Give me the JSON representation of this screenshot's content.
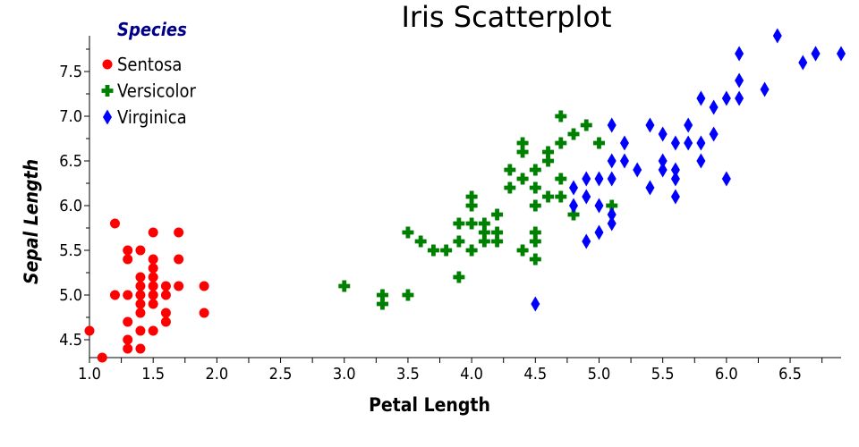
{
  "chart_data": {
    "type": "scatter",
    "title": "Iris Scatterplot",
    "xlabel": "Petal Length",
    "ylabel": "Sepal Length",
    "xlim": [
      1.0,
      6.9
    ],
    "ylim": [
      4.3,
      7.9
    ],
    "x_ticks": [
      "1.0",
      "1.5",
      "2.0",
      "2.5",
      "3.0",
      "3.5",
      "4.0",
      "4.5",
      "5.0",
      "5.5",
      "6.0",
      "6.5"
    ],
    "y_ticks": [
      "4.5",
      "5.0",
      "5.5",
      "6.0",
      "6.5",
      "7.0",
      "7.5"
    ],
    "legend": {
      "title": "Species",
      "position": "top-left"
    },
    "series": [
      {
        "name": "Sentosa",
        "color": "#ff0000",
        "marker": "circle",
        "points": [
          [
            1.0,
            4.6
          ],
          [
            1.1,
            4.3
          ],
          [
            1.2,
            5.8
          ],
          [
            1.2,
            5.0
          ],
          [
            1.3,
            5.5
          ],
          [
            1.3,
            5.4
          ],
          [
            1.3,
            5.0
          ],
          [
            1.3,
            4.7
          ],
          [
            1.3,
            4.5
          ],
          [
            1.3,
            4.4
          ],
          [
            1.4,
            5.5
          ],
          [
            1.4,
            5.2
          ],
          [
            1.4,
            5.1
          ],
          [
            1.4,
            5.0
          ],
          [
            1.4,
            4.9
          ],
          [
            1.4,
            4.8
          ],
          [
            1.4,
            4.6
          ],
          [
            1.4,
            4.4
          ],
          [
            1.5,
            5.7
          ],
          [
            1.5,
            5.4
          ],
          [
            1.5,
            5.3
          ],
          [
            1.5,
            5.2
          ],
          [
            1.5,
            5.1
          ],
          [
            1.5,
            5.0
          ],
          [
            1.5,
            4.9
          ],
          [
            1.5,
            4.6
          ],
          [
            1.6,
            5.1
          ],
          [
            1.6,
            5.0
          ],
          [
            1.6,
            4.8
          ],
          [
            1.6,
            4.7
          ],
          [
            1.7,
            5.7
          ],
          [
            1.7,
            5.4
          ],
          [
            1.7,
            5.1
          ],
          [
            1.9,
            5.1
          ],
          [
            1.9,
            4.8
          ]
        ]
      },
      {
        "name": "Versicolor",
        "color": "#008000",
        "marker": "cross",
        "points": [
          [
            3.0,
            5.1
          ],
          [
            3.3,
            5.0
          ],
          [
            3.3,
            4.9
          ],
          [
            3.5,
            5.7
          ],
          [
            3.5,
            5.0
          ],
          [
            3.6,
            5.6
          ],
          [
            3.7,
            5.5
          ],
          [
            3.8,
            5.5
          ],
          [
            3.9,
            5.8
          ],
          [
            3.9,
            5.6
          ],
          [
            3.9,
            5.2
          ],
          [
            4.0,
            6.1
          ],
          [
            4.0,
            6.0
          ],
          [
            4.0,
            5.8
          ],
          [
            4.0,
            5.5
          ],
          [
            4.1,
            5.8
          ],
          [
            4.1,
            5.7
          ],
          [
            4.1,
            5.6
          ],
          [
            4.2,
            5.9
          ],
          [
            4.2,
            5.7
          ],
          [
            4.2,
            5.6
          ],
          [
            4.3,
            6.4
          ],
          [
            4.3,
            6.2
          ],
          [
            4.4,
            6.7
          ],
          [
            4.4,
            6.6
          ],
          [
            4.4,
            6.3
          ],
          [
            4.4,
            5.5
          ],
          [
            4.5,
            6.4
          ],
          [
            4.5,
            6.2
          ],
          [
            4.5,
            6.0
          ],
          [
            4.5,
            5.7
          ],
          [
            4.5,
            5.6
          ],
          [
            4.5,
            5.4
          ],
          [
            4.6,
            6.6
          ],
          [
            4.6,
            6.5
          ],
          [
            4.6,
            6.1
          ],
          [
            4.7,
            7.0
          ],
          [
            4.7,
            6.7
          ],
          [
            4.7,
            6.3
          ],
          [
            4.7,
            6.1
          ],
          [
            4.8,
            6.8
          ],
          [
            4.8,
            5.9
          ],
          [
            4.9,
            6.9
          ],
          [
            5.0,
            6.7
          ],
          [
            5.1,
            6.0
          ]
        ]
      },
      {
        "name": "Virginica",
        "color": "#0000ff",
        "marker": "diamond",
        "points": [
          [
            4.5,
            4.9
          ],
          [
            4.8,
            6.2
          ],
          [
            4.8,
            6.0
          ],
          [
            4.9,
            6.3
          ],
          [
            4.9,
            6.1
          ],
          [
            4.9,
            5.6
          ],
          [
            5.0,
            6.3
          ],
          [
            5.0,
            6.0
          ],
          [
            5.0,
            5.7
          ],
          [
            5.1,
            6.9
          ],
          [
            5.1,
            6.5
          ],
          [
            5.1,
            6.3
          ],
          [
            5.1,
            5.9
          ],
          [
            5.1,
            5.8
          ],
          [
            5.2,
            6.7
          ],
          [
            5.2,
            6.5
          ],
          [
            5.3,
            6.4
          ],
          [
            5.4,
            6.9
          ],
          [
            5.4,
            6.2
          ],
          [
            5.5,
            6.8
          ],
          [
            5.5,
            6.5
          ],
          [
            5.5,
            6.4
          ],
          [
            5.6,
            6.7
          ],
          [
            5.6,
            6.4
          ],
          [
            5.6,
            6.3
          ],
          [
            5.6,
            6.1
          ],
          [
            5.7,
            6.9
          ],
          [
            5.7,
            6.7
          ],
          [
            5.8,
            7.2
          ],
          [
            5.8,
            6.7
          ],
          [
            5.8,
            6.5
          ],
          [
            5.9,
            7.1
          ],
          [
            5.9,
            6.8
          ],
          [
            6.0,
            7.2
          ],
          [
            6.0,
            6.3
          ],
          [
            6.1,
            7.7
          ],
          [
            6.1,
            7.4
          ],
          [
            6.1,
            7.2
          ],
          [
            6.3,
            7.3
          ],
          [
            6.4,
            7.9
          ],
          [
            6.6,
            7.6
          ],
          [
            6.7,
            7.7
          ],
          [
            6.7,
            7.7
          ],
          [
            6.9,
            7.7
          ]
        ]
      }
    ]
  }
}
